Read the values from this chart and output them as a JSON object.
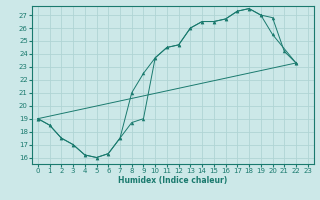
{
  "xlabel": "Humidex (Indice chaleur)",
  "bg_color": "#cce8e8",
  "line_color": "#1a7a6e",
  "grid_color": "#b0d4d4",
  "xlim": [
    -0.5,
    23.5
  ],
  "ylim": [
    15.5,
    27.7
  ],
  "xticks": [
    0,
    1,
    2,
    3,
    4,
    5,
    6,
    7,
    8,
    9,
    10,
    11,
    12,
    13,
    14,
    15,
    16,
    17,
    18,
    19,
    20,
    21,
    22,
    23
  ],
  "yticks": [
    16,
    17,
    18,
    19,
    20,
    21,
    22,
    23,
    24,
    25,
    26,
    27
  ],
  "line1_x": [
    0,
    1,
    2,
    3,
    4,
    5,
    6,
    7,
    8,
    9,
    10,
    11,
    12,
    13,
    14,
    15,
    16,
    17,
    18,
    19,
    20,
    21,
    22
  ],
  "line1_y": [
    19,
    18.5,
    17.5,
    17,
    16.2,
    16.0,
    16.3,
    17.5,
    21.0,
    22.5,
    23.7,
    24.5,
    24.7,
    26.0,
    26.5,
    26.5,
    26.7,
    27.3,
    27.5,
    27.0,
    26.8,
    24.2,
    23.3
  ],
  "line2_x": [
    0,
    1,
    2,
    3,
    4,
    5,
    6,
    7,
    8,
    9,
    10,
    11,
    12,
    13,
    14,
    15,
    16,
    17,
    18,
    19,
    20,
    22
  ],
  "line2_y": [
    19,
    18.5,
    17.5,
    17,
    16.2,
    16.0,
    16.3,
    17.5,
    18.7,
    19.0,
    23.7,
    24.5,
    24.7,
    26.0,
    26.5,
    26.5,
    26.7,
    27.3,
    27.5,
    27.0,
    25.5,
    23.3
  ],
  "line3_x": [
    0,
    22
  ],
  "line3_y": [
    19,
    23.3
  ],
  "markersize": 2.5
}
